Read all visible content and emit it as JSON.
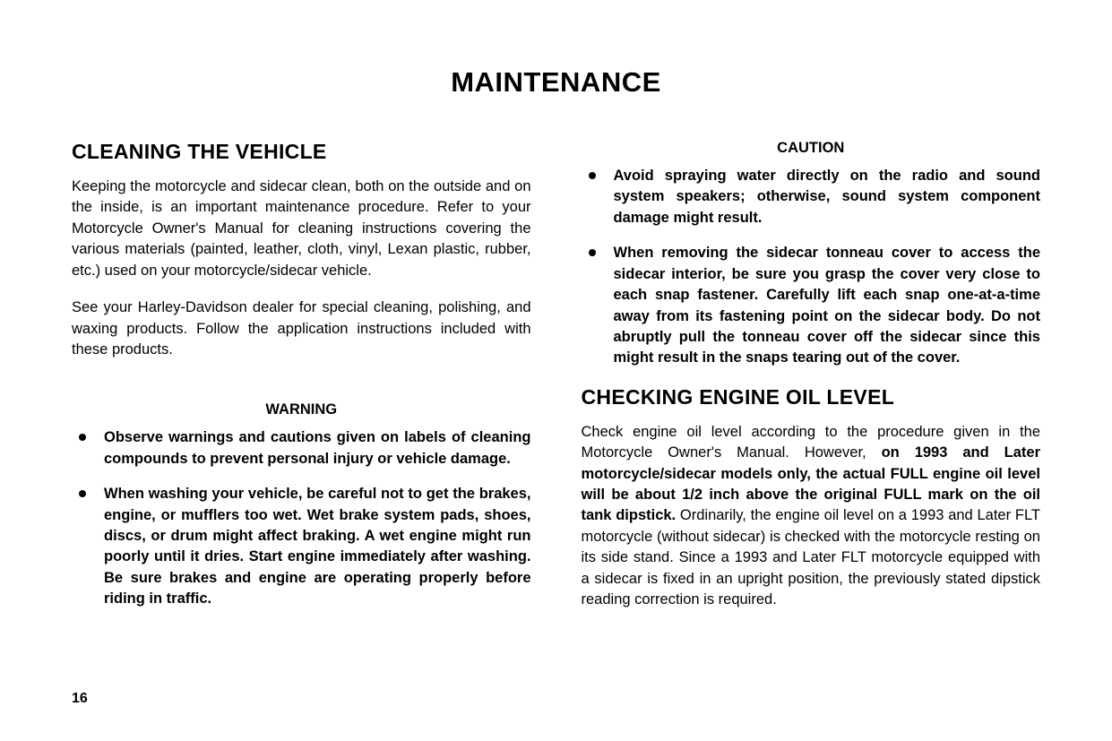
{
  "page": {
    "title": "MAINTENANCE",
    "number": "16"
  },
  "left": {
    "section_heading": "CLEANING THE VEHICLE",
    "para1": "Keeping the motorcycle and sidecar clean, both on the outside and on the inside, is an important maintenance procedure. Refer to your Motorcycle Owner's Manual for cleaning instructions covering the various materials (painted, leather, cloth, vinyl, Lexan plastic, rubber, etc.) used on your motorcycle/sidecar vehicle.",
    "para2": "See your Harley-Davidson dealer for special cleaning, polishing, and waxing products. Follow the application instructions included with these products.",
    "warning_label": "WARNING",
    "warnings": [
      "Observe warnings and cautions given on labels of cleaning compounds to prevent personal injury or vehicle damage.",
      "When washing your vehicle, be careful not to get the brakes, engine, or mufflers too wet. Wet brake system pads, shoes, discs, or drum might affect braking. A wet engine might run poorly until it dries. Start engine immediately after washing. Be sure brakes and engine are operating properly before riding in traffic."
    ]
  },
  "right": {
    "caution_label": "CAUTION",
    "cautions": [
      "Avoid spraying water directly on the radio and sound system speakers; otherwise, sound system component damage might result.",
      "When removing the sidecar tonneau cover to access the sidecar interior, be sure you grasp the cover very close to each snap fastener. Carefully lift each snap one-at-a-time away from its fastening point on the sidecar body. Do not abruptly pull the tonneau cover off the sidecar since this might result in the snaps tearing out of the cover."
    ],
    "oil_heading": "CHECKING ENGINE OIL LEVEL",
    "oil_para_plain1": "Check engine oil level according to the procedure given in the Motorcycle Owner's Manual. However, ",
    "oil_para_bold": "on 1993 and Later motorcycle/sidecar models only, the actual FULL engine oil level will be about 1/2 inch above the original FULL mark on the oil tank dipstick.",
    "oil_para_plain2": " Ordinarily, the engine oil level on a 1993 and Later FLT motorcycle (without sidecar) is checked with the motorcycle resting on its side stand. Since a 1993 and Later FLT motorcycle equipped with a sidecar is fixed in an upright position, the previously stated dipstick reading correction is required."
  }
}
